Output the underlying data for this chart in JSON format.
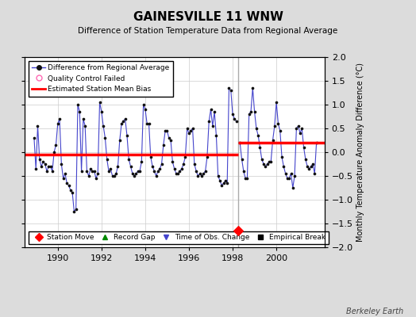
{
  "title": "GAINESVILLE 11 WNW",
  "subtitle": "Difference of Station Temperature Data from Regional Average",
  "ylabel": "Monthly Temperature Anomaly Difference (°C)",
  "credit": "Berkeley Earth",
  "xlim": [
    1988.5,
    2002.2
  ],
  "ylim": [
    -2,
    2
  ],
  "yticks": [
    -2,
    -1.5,
    -1,
    -0.5,
    0,
    0.5,
    1,
    1.5,
    2
  ],
  "xticks": [
    1990,
    1992,
    1994,
    1996,
    1998,
    2000
  ],
  "break_year": 1998.25,
  "station_move_year": 1998.25,
  "station_move_y": -1.65,
  "bias_before": -0.05,
  "bias_after": 0.2,
  "bg_color": "#dcdcdc",
  "plot_bg": "#ffffff",
  "line_color": "#4444cc",
  "marker_color": "#111111",
  "bias_color": "#ff0000",
  "break_line_color": "#aaaaaa",
  "data": [
    [
      1988.917,
      0.3
    ],
    [
      1989.0,
      -0.35
    ],
    [
      1989.083,
      0.55
    ],
    [
      1989.167,
      -0.15
    ],
    [
      1989.25,
      -0.3
    ],
    [
      1989.333,
      -0.2
    ],
    [
      1989.417,
      -0.25
    ],
    [
      1989.5,
      -0.4
    ],
    [
      1989.583,
      -0.3
    ],
    [
      1989.667,
      -0.3
    ],
    [
      1989.75,
      -0.4
    ],
    [
      1989.833,
      0.0
    ],
    [
      1989.917,
      0.15
    ],
    [
      1990.0,
      0.6
    ],
    [
      1990.083,
      0.7
    ],
    [
      1990.167,
      -0.25
    ],
    [
      1990.25,
      -0.55
    ],
    [
      1990.333,
      -0.45
    ],
    [
      1990.417,
      -0.65
    ],
    [
      1990.5,
      -0.7
    ],
    [
      1990.583,
      -0.8
    ],
    [
      1990.667,
      -0.85
    ],
    [
      1990.75,
      -1.25
    ],
    [
      1990.833,
      -1.2
    ],
    [
      1990.917,
      1.0
    ],
    [
      1991.0,
      0.85
    ],
    [
      1991.083,
      -0.4
    ],
    [
      1991.167,
      0.7
    ],
    [
      1991.25,
      0.55
    ],
    [
      1991.333,
      -0.4
    ],
    [
      1991.417,
      -0.5
    ],
    [
      1991.5,
      -0.35
    ],
    [
      1991.583,
      -0.4
    ],
    [
      1991.667,
      -0.4
    ],
    [
      1991.75,
      -0.55
    ],
    [
      1991.833,
      -0.45
    ],
    [
      1991.917,
      1.05
    ],
    [
      1992.0,
      0.85
    ],
    [
      1992.083,
      0.55
    ],
    [
      1992.167,
      0.3
    ],
    [
      1992.25,
      -0.15
    ],
    [
      1992.333,
      -0.4
    ],
    [
      1992.417,
      -0.35
    ],
    [
      1992.5,
      -0.5
    ],
    [
      1992.583,
      -0.5
    ],
    [
      1992.667,
      -0.45
    ],
    [
      1992.75,
      -0.3
    ],
    [
      1992.833,
      0.25
    ],
    [
      1992.917,
      0.6
    ],
    [
      1993.0,
      0.65
    ],
    [
      1993.083,
      0.7
    ],
    [
      1993.167,
      0.35
    ],
    [
      1993.25,
      -0.15
    ],
    [
      1993.333,
      -0.3
    ],
    [
      1993.417,
      -0.45
    ],
    [
      1993.5,
      -0.5
    ],
    [
      1993.583,
      -0.45
    ],
    [
      1993.667,
      -0.4
    ],
    [
      1993.75,
      -0.4
    ],
    [
      1993.833,
      -0.2
    ],
    [
      1993.917,
      1.0
    ],
    [
      1994.0,
      0.9
    ],
    [
      1994.083,
      0.6
    ],
    [
      1994.167,
      0.6
    ],
    [
      1994.25,
      -0.1
    ],
    [
      1994.333,
      -0.3
    ],
    [
      1994.417,
      -0.4
    ],
    [
      1994.5,
      -0.5
    ],
    [
      1994.583,
      -0.4
    ],
    [
      1994.667,
      -0.35
    ],
    [
      1994.75,
      -0.25
    ],
    [
      1994.833,
      0.15
    ],
    [
      1994.917,
      0.45
    ],
    [
      1995.0,
      0.45
    ],
    [
      1995.083,
      0.3
    ],
    [
      1995.167,
      0.25
    ],
    [
      1995.25,
      -0.2
    ],
    [
      1995.333,
      -0.35
    ],
    [
      1995.417,
      -0.45
    ],
    [
      1995.5,
      -0.45
    ],
    [
      1995.583,
      -0.4
    ],
    [
      1995.667,
      -0.35
    ],
    [
      1995.75,
      -0.25
    ],
    [
      1995.833,
      -0.1
    ],
    [
      1995.917,
      0.5
    ],
    [
      1996.0,
      0.4
    ],
    [
      1996.083,
      0.45
    ],
    [
      1996.167,
      0.5
    ],
    [
      1996.25,
      -0.25
    ],
    [
      1996.333,
      -0.4
    ],
    [
      1996.417,
      -0.5
    ],
    [
      1996.5,
      -0.45
    ],
    [
      1996.583,
      -0.5
    ],
    [
      1996.667,
      -0.45
    ],
    [
      1996.75,
      -0.4
    ],
    [
      1996.833,
      -0.1
    ],
    [
      1996.917,
      0.65
    ],
    [
      1997.0,
      0.9
    ],
    [
      1997.083,
      0.55
    ],
    [
      1997.167,
      0.85
    ],
    [
      1997.25,
      0.35
    ],
    [
      1997.333,
      -0.5
    ],
    [
      1997.417,
      -0.6
    ],
    [
      1997.5,
      -0.7
    ],
    [
      1997.583,
      -0.65
    ],
    [
      1997.667,
      -0.6
    ],
    [
      1997.75,
      -0.65
    ],
    [
      1997.833,
      1.35
    ],
    [
      1997.917,
      1.3
    ],
    [
      1998.0,
      0.8
    ],
    [
      1998.083,
      0.7
    ],
    [
      1998.167,
      0.65
    ],
    [
      1998.333,
      0.2
    ],
    [
      1998.417,
      -0.15
    ],
    [
      1998.5,
      -0.4
    ],
    [
      1998.583,
      -0.55
    ],
    [
      1998.667,
      -0.55
    ],
    [
      1998.75,
      0.8
    ],
    [
      1998.833,
      0.85
    ],
    [
      1998.917,
      1.35
    ],
    [
      1999.0,
      0.85
    ],
    [
      1999.083,
      0.5
    ],
    [
      1999.167,
      0.35
    ],
    [
      1999.25,
      0.1
    ],
    [
      1999.333,
      -0.15
    ],
    [
      1999.417,
      -0.25
    ],
    [
      1999.5,
      -0.3
    ],
    [
      1999.583,
      -0.25
    ],
    [
      1999.667,
      -0.2
    ],
    [
      1999.75,
      -0.2
    ],
    [
      1999.833,
      0.25
    ],
    [
      1999.917,
      0.55
    ],
    [
      2000.0,
      1.05
    ],
    [
      2000.083,
      0.6
    ],
    [
      2000.167,
      0.45
    ],
    [
      2000.25,
      -0.1
    ],
    [
      2000.333,
      -0.3
    ],
    [
      2000.417,
      -0.45
    ],
    [
      2000.5,
      -0.55
    ],
    [
      2000.583,
      -0.55
    ],
    [
      2000.667,
      -0.45
    ],
    [
      2000.75,
      -0.75
    ],
    [
      2000.833,
      -0.5
    ],
    [
      2000.917,
      0.5
    ],
    [
      2001.0,
      0.55
    ],
    [
      2001.083,
      0.4
    ],
    [
      2001.167,
      0.5
    ],
    [
      2001.25,
      0.1
    ],
    [
      2001.333,
      -0.15
    ],
    [
      2001.417,
      -0.3
    ],
    [
      2001.5,
      -0.35
    ],
    [
      2001.583,
      -0.3
    ],
    [
      2001.667,
      -0.25
    ],
    [
      2001.75,
      -0.45
    ],
    [
      2001.833,
      0.2
    ]
  ]
}
